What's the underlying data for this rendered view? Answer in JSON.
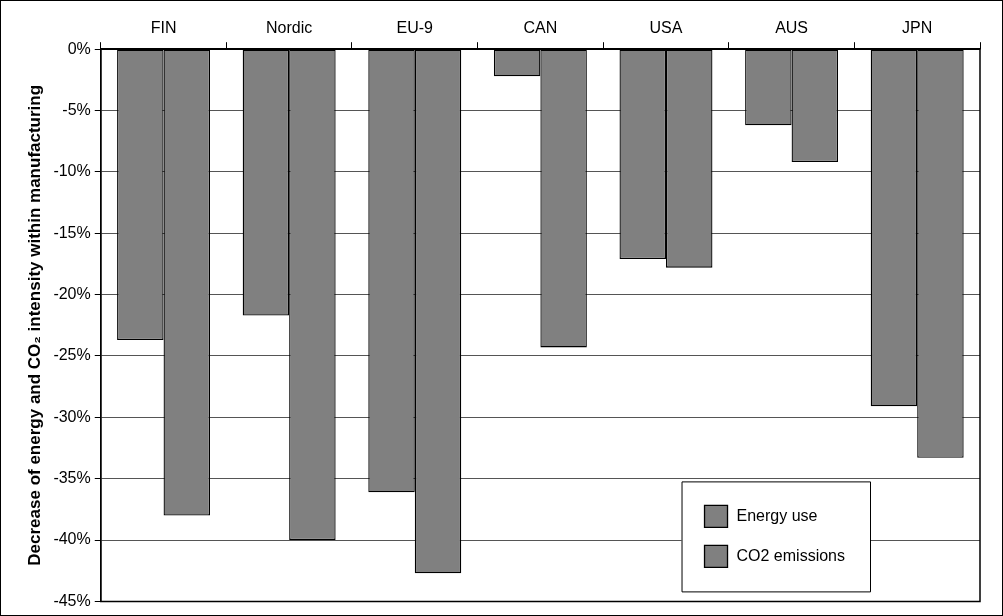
{
  "chart_data": {
    "type": "bar",
    "ylabel": "Decrease of energy and CO₂ intensity within manufacturing",
    "categories": [
      "FIN",
      "Nordic",
      "EU-9",
      "CAN",
      "USA",
      "AUS",
      "JPN"
    ],
    "series": [
      {
        "name": "Energy use",
        "color": "#808080",
        "values": [
          -23.7,
          -21.7,
          -36.1,
          -2.2,
          -17.1,
          -6.2,
          -29.1
        ]
      },
      {
        "name": "CO2 emissions",
        "color": "#808080",
        "values": [
          -38.0,
          -40.0,
          -42.7,
          -24.3,
          -17.8,
          -9.2,
          -33.3
        ]
      }
    ],
    "ylim": [
      -45,
      0
    ],
    "yticks": [
      {
        "value": 0,
        "label": "0%"
      },
      {
        "value": -5,
        "label": "-5%"
      },
      {
        "value": -10,
        "label": "-10%"
      },
      {
        "value": -15,
        "label": "-15%"
      },
      {
        "value": -20,
        "label": "-20%"
      },
      {
        "value": -25,
        "label": "-25%"
      },
      {
        "value": -30,
        "label": "-30%"
      },
      {
        "value": -35,
        "label": "-35%"
      },
      {
        "value": -40,
        "label": "-40%"
      },
      {
        "value": -45,
        "label": "-45%"
      }
    ],
    "grid": "y",
    "legend": "bottom right"
  }
}
